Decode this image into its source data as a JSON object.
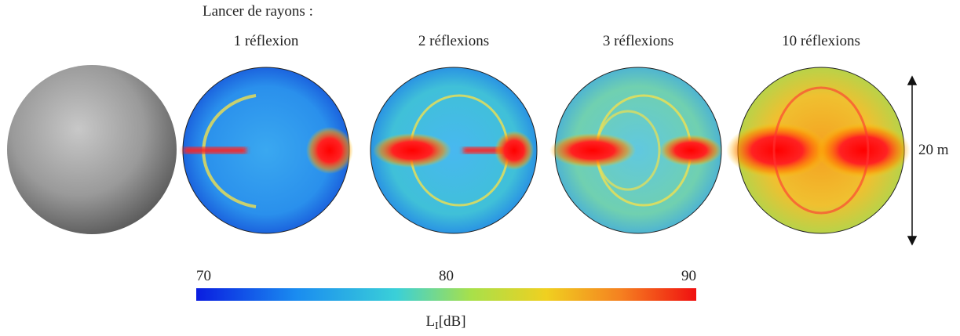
{
  "heading": "Lancer de rayons :",
  "panels": [
    {
      "label": "1 réflexion"
    },
    {
      "label": "2 réflexions"
    },
    {
      "label": "3 réflexions"
    },
    {
      "label": "10 réflexions"
    }
  ],
  "scale_label": "20 m",
  "colorbar": {
    "range": [
      70,
      90
    ],
    "ticks": [
      70,
      80,
      90
    ],
    "label_main": "L",
    "label_sub": "I",
    "label_unit": "[dB]"
  }
}
